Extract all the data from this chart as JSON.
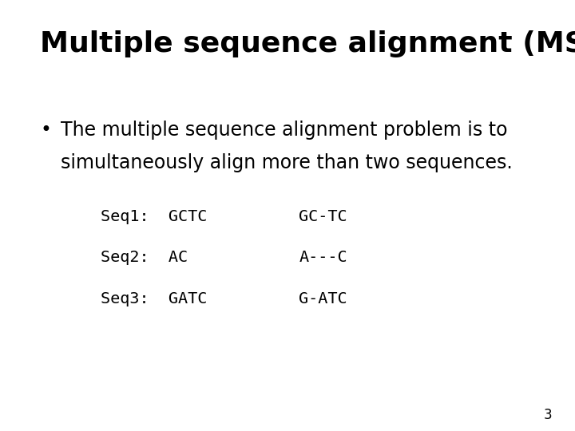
{
  "title": "Multiple sequence alignment (MSA)",
  "bullet_text_line1": "The multiple sequence alignment problem is to",
  "bullet_text_line2": "simultaneously align more than two sequences.",
  "seq_rows": [
    {
      "combined": "Seq1:  GCTC",
      "after": "GC-TC"
    },
    {
      "combined": "Seq2:  AC",
      "after": "A---C"
    },
    {
      "combined": "Seq3:  GATC",
      "after": "G-ATC"
    }
  ],
  "page_number": "3",
  "background_color": "#ffffff",
  "text_color": "#000000",
  "title_fontsize": 26,
  "bullet_fontsize": 17,
  "mono_fontsize": 14.5,
  "page_num_fontsize": 12
}
